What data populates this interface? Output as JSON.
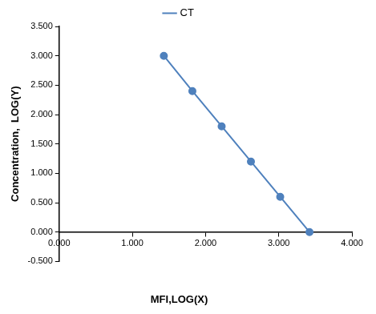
{
  "chart_data": {
    "type": "line",
    "x_label": "MFI,LOG(X)",
    "y_label": "Concentration,  LOG(Y)",
    "x": [
      1.43,
      1.82,
      2.22,
      2.62,
      3.02,
      3.42
    ],
    "series": [
      {
        "name": "CT",
        "color": "#4f81bd",
        "marker": "circle",
        "line_style": "solid",
        "values": [
          3.0,
          2.4,
          1.8,
          1.2,
          0.6,
          0.0
        ]
      }
    ],
    "xlim": [
      0,
      4
    ],
    "xticks": [
      {
        "value": 0,
        "label": "0.000"
      },
      {
        "value": 1,
        "label": "1.000"
      },
      {
        "value": 2,
        "label": "2.000"
      },
      {
        "value": 3,
        "label": "3.000"
      },
      {
        "value": 4,
        "label": "4.000"
      }
    ],
    "ylim": [
      -0.5,
      3.5
    ],
    "yticks": [
      {
        "value": -0.5,
        "label": "-0.500"
      },
      {
        "value": 0,
        "label": "0.000"
      },
      {
        "value": 0.5,
        "label": "0.500"
      },
      {
        "value": 1,
        "label": "1.000"
      },
      {
        "value": 1.5,
        "label": "1.500"
      },
      {
        "value": 2,
        "label": "2.000"
      },
      {
        "value": 2.5,
        "label": "2.500"
      },
      {
        "value": 3,
        "label": "3.000"
      },
      {
        "value": 3.5,
        "label": "3.500"
      }
    ],
    "grid": false,
    "legend": "top"
  }
}
